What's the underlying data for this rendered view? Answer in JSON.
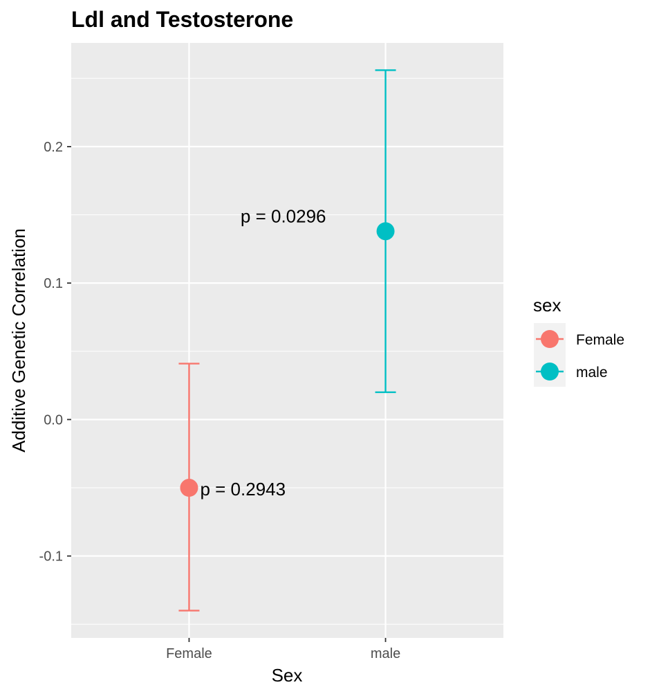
{
  "chart_data": {
    "type": "scatter",
    "title": "Ldl and Testosterone",
    "xlabel": "Sex",
    "ylabel": "Additive Genetic Correlation",
    "categories": [
      "Female",
      "male"
    ],
    "y_ticks": [
      -0.1,
      0.0,
      0.1,
      0.2
    ],
    "y_tick_labels": [
      "-0.1",
      "0.0",
      "0.1",
      "0.2"
    ],
    "ylim": [
      -0.16,
      0.276
    ],
    "grid": true,
    "series": [
      {
        "name": "Female",
        "category": "Female",
        "value": -0.05,
        "lower": -0.14,
        "upper": 0.041,
        "color": "#F8766D"
      },
      {
        "name": "male",
        "category": "male",
        "value": 0.138,
        "lower": 0.02,
        "upper": 0.256,
        "color": "#00BFC4"
      }
    ],
    "annotations": [
      {
        "text": "p = 0.2943",
        "category": "Female",
        "y": -0.051,
        "anchor": "right"
      },
      {
        "text": "p = 0.0296",
        "category": "male",
        "y": 0.149,
        "anchor": "left"
      }
    ],
    "legend": {
      "title": "sex",
      "position": "right",
      "items": [
        "Female",
        "male"
      ]
    },
    "panel_background": "#EBEBEB",
    "grid_color": "#FFFFFF"
  }
}
